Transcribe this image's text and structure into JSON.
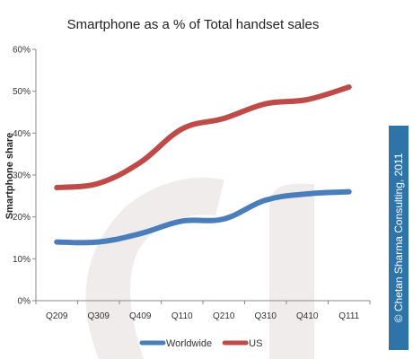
{
  "chart_data": {
    "type": "line",
    "title": "Smartphone as a % of Total handset sales",
    "xlabel": "",
    "ylabel": "Smartphone share",
    "categories": [
      "Q209",
      "Q309",
      "Q409",
      "Q110",
      "Q210",
      "Q310",
      "Q410",
      "Q111"
    ],
    "ylim": [
      0,
      60
    ],
    "yticks": [
      "0%",
      "10%",
      "20%",
      "30%",
      "40%",
      "50%",
      "60%"
    ],
    "ytick_values": [
      0,
      10,
      20,
      30,
      40,
      50,
      60
    ],
    "grid": false,
    "legend_position": "bottom",
    "series": [
      {
        "name": "Worldwide",
        "color": "#4A7EBB",
        "values": [
          14,
          14,
          16,
          19,
          19.5,
          24,
          25.5,
          26
        ]
      },
      {
        "name": "US",
        "color": "#BE4B48",
        "values": [
          27,
          28,
          33,
          41,
          43.5,
          47,
          48,
          51
        ]
      }
    ]
  },
  "watermark": {
    "copyright": "© Chetan Sharma Consulting, 2011",
    "bar_color": "#2E74A8"
  }
}
